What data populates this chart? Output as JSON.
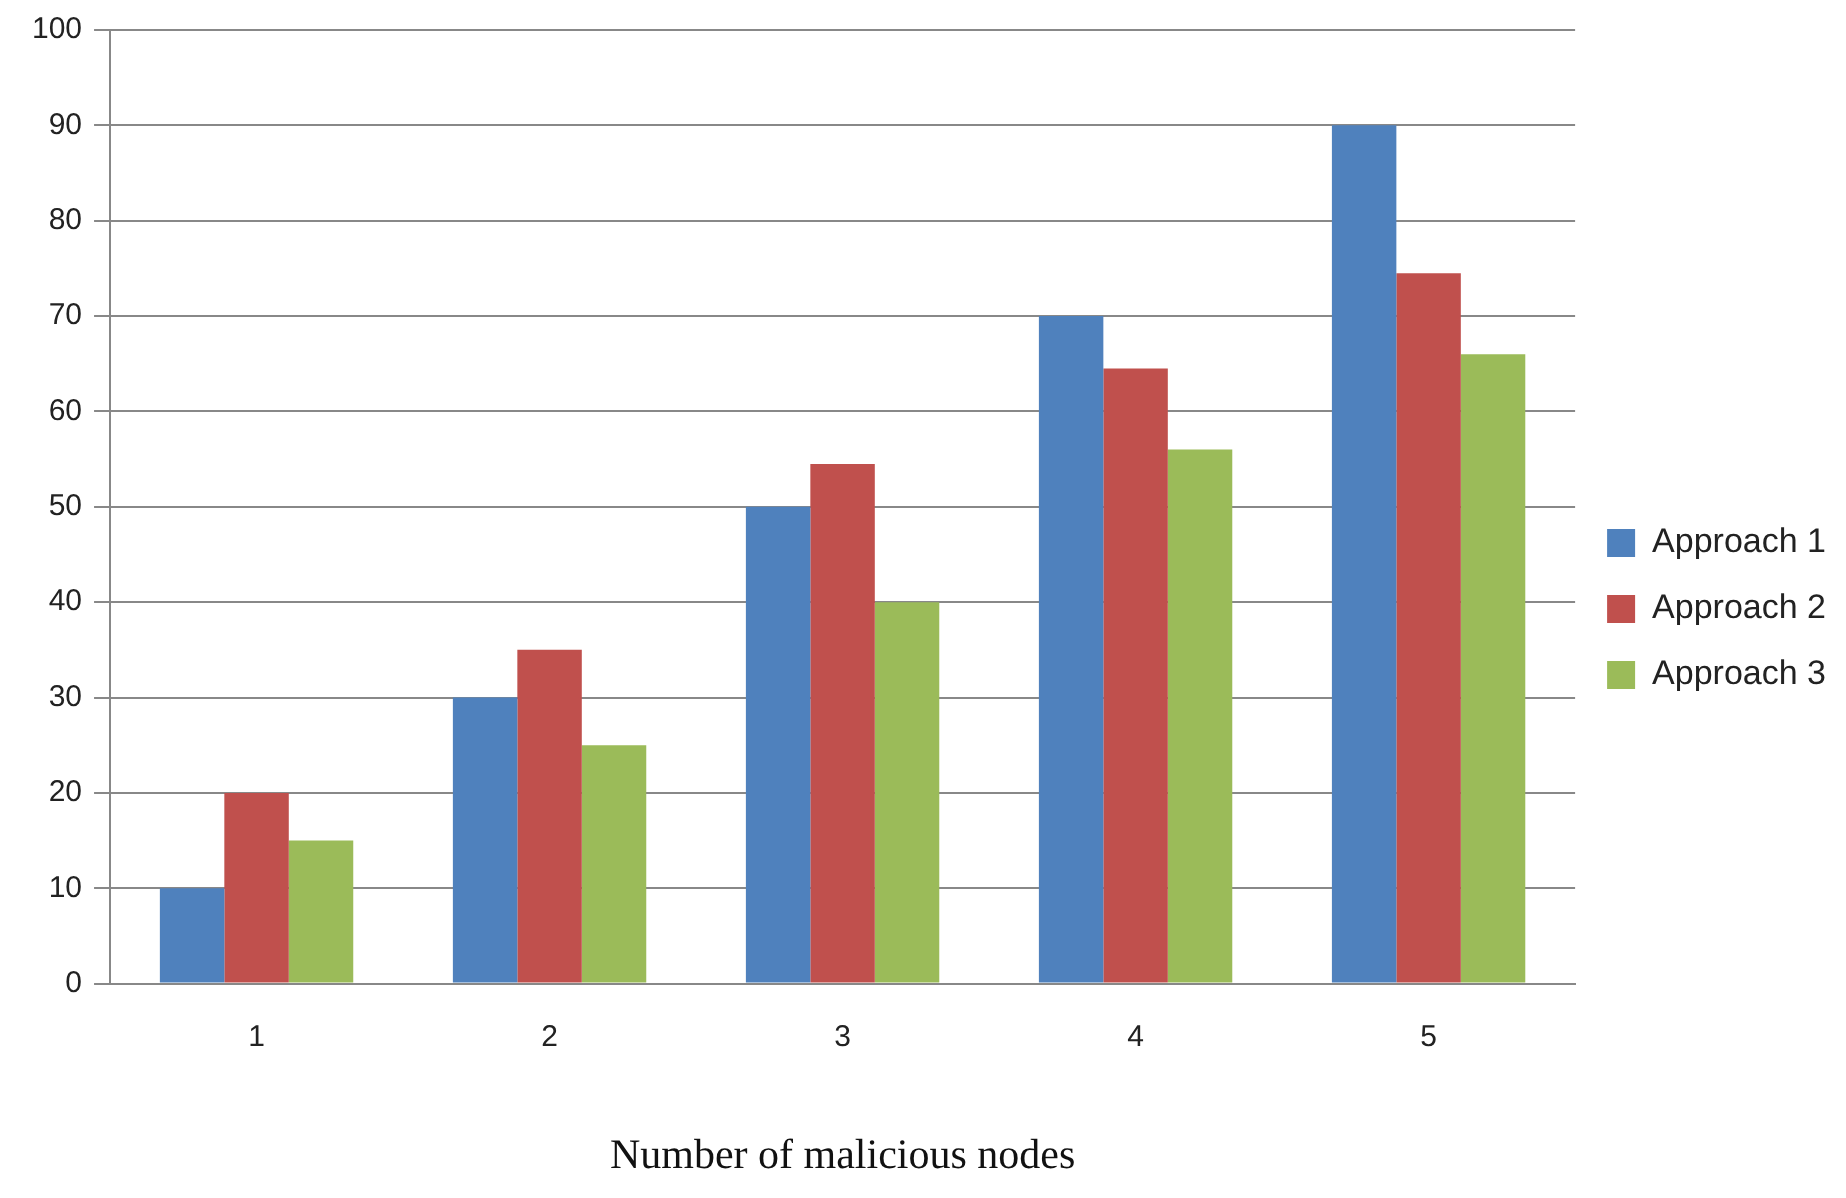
{
  "chart_data": {
    "type": "bar",
    "xlabel": "Number of malicious nodes",
    "categories": [
      "1",
      "2",
      "3",
      "4",
      "5"
    ],
    "series": [
      {
        "name": "Approach 1",
        "color": "#4f81bd",
        "values": [
          10,
          30,
          50,
          70,
          90
        ]
      },
      {
        "name": "Approach 2",
        "color": "#c0504d",
        "values": [
          20,
          35,
          54.5,
          64.5,
          74.5
        ]
      },
      {
        "name": "Approach 3",
        "color": "#9bbb59",
        "values": [
          15,
          25,
          40,
          56,
          66
        ]
      }
    ],
    "ylim": [
      0,
      100
    ],
    "yticks": [
      0,
      10,
      20,
      30,
      40,
      50,
      60,
      70,
      80,
      90,
      100
    ],
    "grid": "y",
    "legend": "right"
  }
}
